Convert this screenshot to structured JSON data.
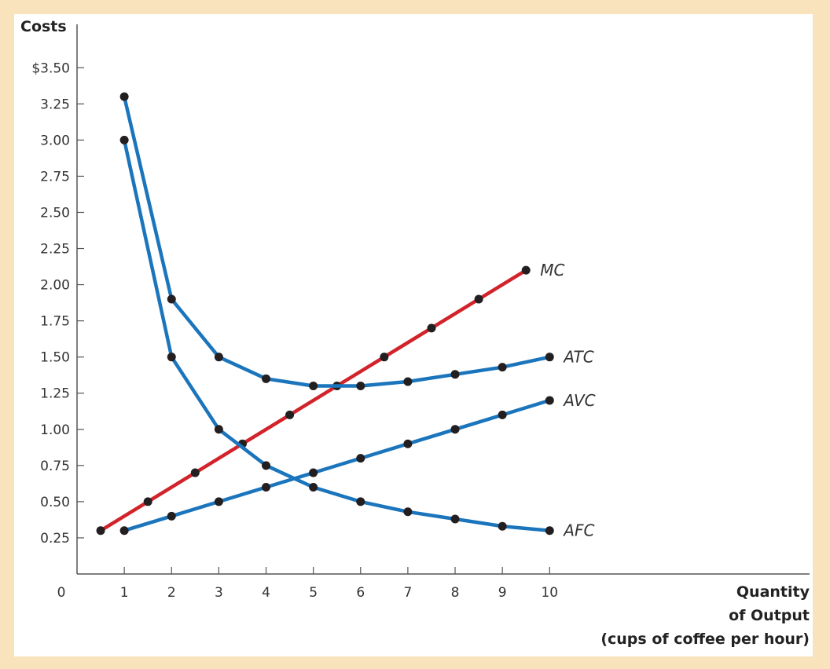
{
  "chart_data": {
    "type": "line",
    "ylabel": "Costs",
    "xlabel_lines": [
      "Quantity",
      "of Output",
      "(cups of coffee per hour)"
    ],
    "origin_label": "0",
    "y_ticks": [
      0.25,
      0.5,
      0.75,
      1.0,
      1.25,
      1.5,
      1.75,
      2.0,
      2.25,
      2.5,
      2.75,
      3.0,
      3.25,
      3.5
    ],
    "y_tick_labels": [
      "0.25",
      "0.50",
      "0.75",
      "1.00",
      "1.25",
      "1.50",
      "1.75",
      "2.00",
      "2.25",
      "2.50",
      "2.75",
      "3.00",
      "3.25",
      "$3.50"
    ],
    "x_ticks": [
      1,
      2,
      3,
      4,
      5,
      6,
      7,
      8,
      9,
      10
    ],
    "x_tick_labels": [
      "1",
      "2",
      "3",
      "4",
      "5",
      "6",
      "7",
      "8",
      "9",
      "10"
    ],
    "xlim": [
      0,
      15.5
    ],
    "ylim": [
      0,
      3.8
    ],
    "grid": false,
    "series": [
      {
        "name": "MC",
        "color": "#d2232a",
        "x": [
          0.5,
          1.5,
          2.5,
          3.5,
          4.5,
          5.5,
          6.5,
          7.5,
          8.5,
          9.5
        ],
        "y": [
          0.3,
          0.5,
          0.7,
          0.9,
          1.1,
          1.3,
          1.5,
          1.7,
          1.9,
          2.1
        ]
      },
      {
        "name": "ATC",
        "color": "#1b75bc",
        "x": [
          1,
          2,
          3,
          4,
          5,
          6,
          7,
          8,
          9,
          10
        ],
        "y": [
          3.3,
          1.9,
          1.5,
          1.35,
          1.3,
          1.3,
          1.33,
          1.38,
          1.43,
          1.5
        ]
      },
      {
        "name": "AVC",
        "color": "#1b75bc",
        "x": [
          1,
          2,
          3,
          4,
          5,
          6,
          7,
          8,
          9,
          10
        ],
        "y": [
          0.3,
          0.4,
          0.5,
          0.6,
          0.7,
          0.8,
          0.9,
          1.0,
          1.1,
          1.2
        ]
      },
      {
        "name": "AFC",
        "color": "#1b75bc",
        "x": [
          1,
          2,
          3,
          4,
          5,
          6,
          7,
          8,
          9,
          10
        ],
        "y": [
          3.0,
          1.5,
          1.0,
          0.75,
          0.6,
          0.5,
          0.43,
          0.38,
          0.33,
          0.3
        ]
      }
    ]
  }
}
